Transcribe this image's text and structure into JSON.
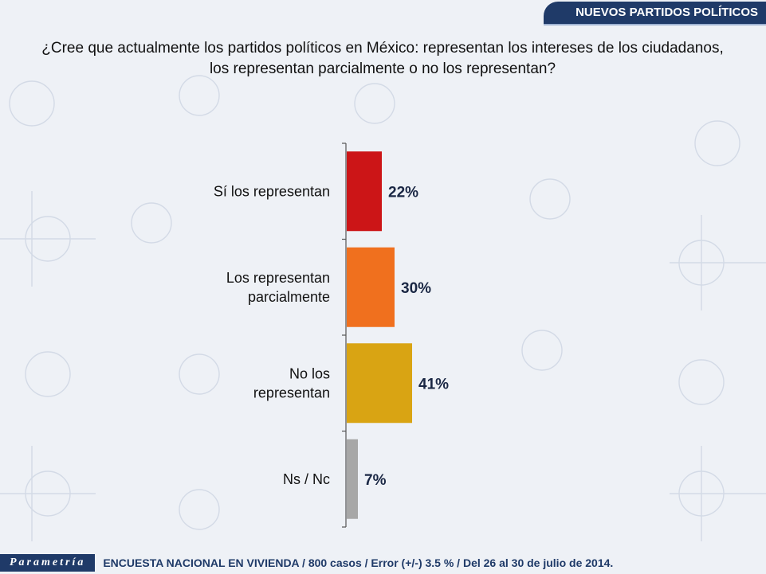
{
  "header": {
    "section_title": "NUEVOS PARTIDOS POLÍTICOS"
  },
  "question": {
    "line1": "¿Cree que actualmente los partidos políticos en México: representan los intereses de los ciudadanos,",
    "line2": "los representan parcialmente o no los representan?"
  },
  "chart_data": {
    "type": "bar",
    "orientation": "horizontal",
    "categories": [
      [
        "Sí los representan"
      ],
      [
        "Los representan",
        "parcialmente"
      ],
      [
        "No los",
        "representan"
      ],
      [
        "Ns / Nc"
      ]
    ],
    "values": [
      22,
      30,
      41,
      7
    ],
    "value_labels": [
      "22%",
      "30%",
      "41%",
      "7%"
    ],
    "colors": [
      "#cc1517",
      "#f0701e",
      "#d9a413",
      "#a7a7a7"
    ],
    "xlim": [
      0,
      100
    ],
    "unit": "%",
    "legend": "none",
    "grid": false
  },
  "footer": {
    "brand": "Parametría",
    "survey_note": "ENCUESTA NACIONAL EN VIVIENDA / 800 casos / Error (+/-) 3.5 % / Del 26 al 30 de julio de 2014."
  }
}
